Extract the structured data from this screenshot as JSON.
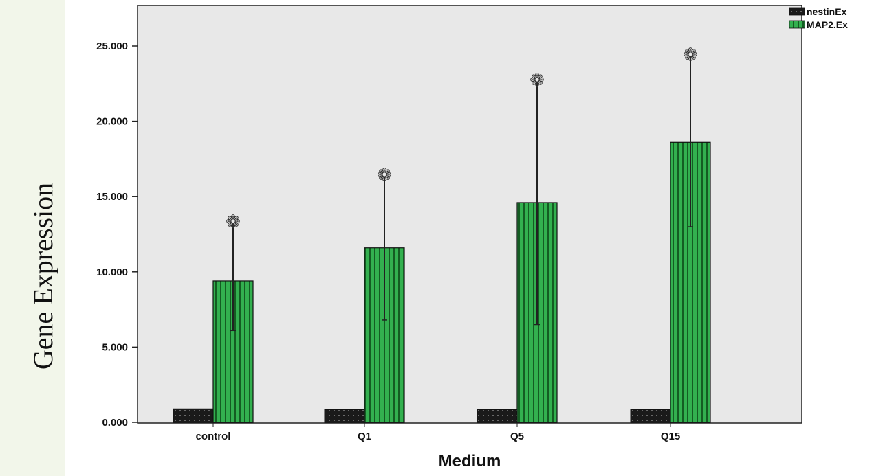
{
  "chart_data": {
    "type": "bar",
    "categories": [
      "control",
      "Q1",
      "Q5",
      "Q15"
    ],
    "series": [
      {
        "name": "nestinEx",
        "values": [
          0.9,
          0.85,
          0.85,
          0.85
        ],
        "color": "#1a1a1a"
      },
      {
        "name": "MAP2.Ex",
        "values": [
          9.4,
          11.6,
          14.6,
          18.6
        ],
        "error_low": [
          6.1,
          6.8,
          6.5,
          13.0
        ],
        "error_high": [
          13.2,
          16.3,
          22.6,
          24.3
        ],
        "significance_marker": [
          "❁",
          "❁",
          "❁",
          "❁"
        ],
        "color": "#2fa84a"
      }
    ],
    "yticks": [
      "0.000",
      "5.000",
      "10.000",
      "15.000",
      "20.000",
      "25.000"
    ],
    "ylim": [
      0,
      27
    ],
    "xlabel": "Medium",
    "ylabel": "Gene Expression",
    "title": "",
    "legend_position": "top-right",
    "grid": false,
    "plot_background": "#e8e8e8"
  }
}
